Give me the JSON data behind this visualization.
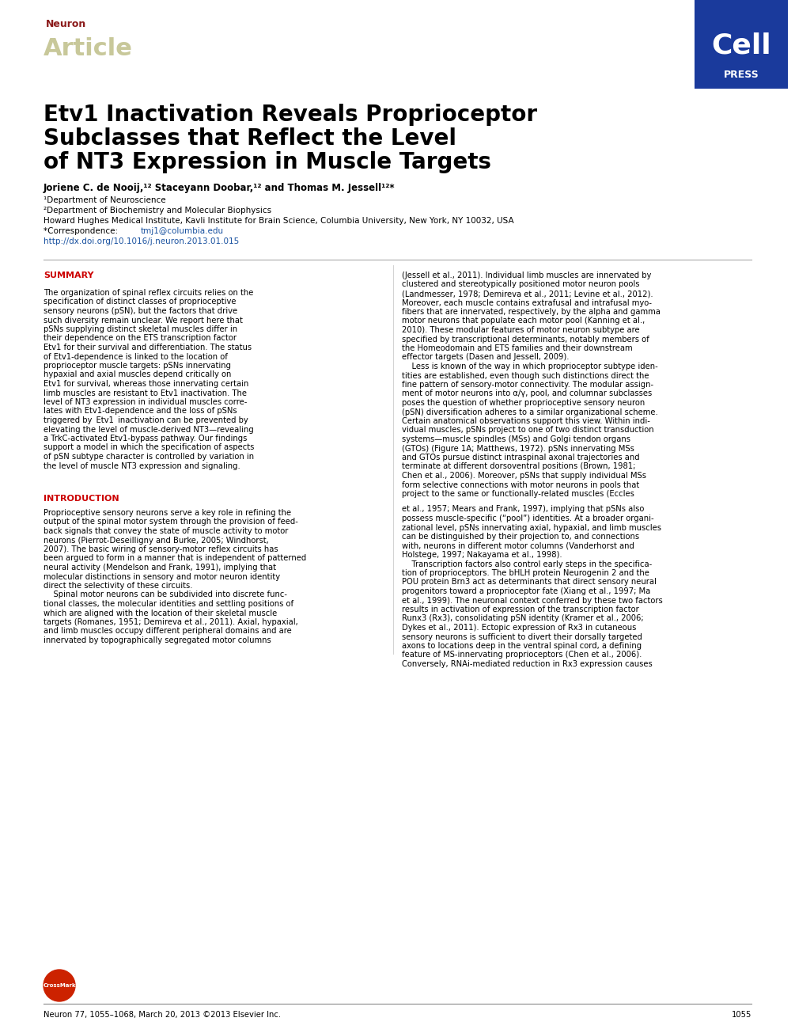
{
  "page_bg": "#ffffff",
  "header_neuron_text": "Neuron",
  "header_neuron_color": "#8B1A1A",
  "header_article_text": "Article",
  "header_article_color": "#C8C89A",
  "cellpress_bg": "#1A3A9C",
  "cellpress_cell": "Cell",
  "cellpress_press": "PRESS",
  "title_line1": "Etv1 Inactivation Reveals Proprioceptor",
  "title_line2": "Subclasses that Reflect the Level",
  "title_line3": "of NT3 Expression in Muscle Targets",
  "title_color": "#000000",
  "affil1": "¹Department of Neuroscience",
  "affil2": "²Department of Biochemistry and Molecular Biophysics",
  "affil3": "Howard Hughes Medical Institute, Kavli Institute for Brain Science, Columbia University, New York, NY 10032, USA",
  "affil4_prefix": "*Correspondence: ",
  "affil4_link": "tmj1@columbia.edu",
  "affil5_link": "http://dx.doi.org/10.1016/j.neuron.2013.01.015",
  "link_color": "#1A52A0",
  "summary_label": "SUMMARY",
  "summary_color": "#CC0000",
  "intro_label": "INTRODUCTION",
  "intro_color": "#CC0000",
  "footer_text": "Neuron 77, 1055–1068, March 20, 2013 ©2013 Elsevier Inc.",
  "footer_page": "1055",
  "text_color": "#000000",
  "body_fontsize": 7.2,
  "summary_left_lines": [
    "The organization of spinal reflex circuits relies on the",
    "specification of distinct classes of proprioceptive",
    "sensory neurons (pSN), but the factors that drive",
    "such diversity remain unclear. We report here that",
    "pSNs supplying distinct skeletal muscles differ in",
    "their dependence on the ETS transcription factor",
    "Etv1 for their survival and differentiation. The status",
    "of Etv1-dependence is linked to the location of",
    "proprioceptor muscle targets: pSNs innervating",
    "hypaxial and axial muscles depend critically on",
    "Etv1 for survival, whereas those innervating certain",
    "limb muscles are resistant to Etv1 inactivation. The",
    "level of NT3 expression in individual muscles corre-",
    "lates with Etv1-dependence and the loss of pSNs",
    "triggered by  Etv1  inactivation can be prevented by",
    "elevating the level of muscle-derived NT3—revealing",
    "a TrkC-activated Etv1-bypass pathway. Our findings",
    "support a model in which the specification of aspects",
    "of pSN subtype character is controlled by variation in",
    "the level of muscle NT3 expression and signaling."
  ],
  "right_summary_lines": [
    "(Jessell et al., 2011). Individual limb muscles are innervated by",
    "clustered and stereotypically positioned motor neuron pools",
    "(Landmesser, 1978; Demireva et al., 2011; Levine et al., 2012).",
    "Moreover, each muscle contains extrafusal and intrafusal myo-",
    "fibers that are innervated, respectively, by the alpha and gamma",
    "motor neurons that populate each motor pool (Kanning et al.,",
    "2010). These modular features of motor neuron subtype are",
    "specified by transcriptional determinants, notably members of",
    "the Homeodomain and ETS families and their downstream",
    "effector targets (Dasen and Jessell, 2009).",
    "    Less is known of the way in which proprioceptor subtype iden-",
    "tities are established, even though such distinctions direct the",
    "fine pattern of sensory-motor connectivity. The modular assign-",
    "ment of motor neurons into α/γ, pool, and columnar subclasses",
    "poses the question of whether proprioceptive sensory neuron",
    "(pSN) diversification adheres to a similar organizational scheme.",
    "Certain anatomical observations support this view. Within indi-",
    "vidual muscles, pSNs project to one of two distinct transduction",
    "systems—muscle spindles (MSs) and Golgi tendon organs",
    "(GTOs) (Figure 1A; Matthews, 1972). pSNs innervating MSs",
    "and GTOs pursue distinct intraspinal axonal trajectories and",
    "terminate at different dorsoventral positions (Brown, 1981;",
    "Chen et al., 2006). Moreover, pSNs that supply individual MSs",
    "form selective connections with motor neurons in pools that",
    "project to the same or functionally-related muscles (Eccles"
  ],
  "intro_left_lines": [
    "Proprioceptive sensory neurons serve a key role in refining the",
    "output of the spinal motor system through the provision of feed-",
    "back signals that convey the state of muscle activity to motor",
    "neurons (Pierrot-Deseilligny and Burke, 2005; Windhorst,",
    "2007). The basic wiring of sensory-motor reflex circuits has",
    "been argued to form in a manner that is independent of patterned",
    "neural activity (Mendelson and Frank, 1991), implying that",
    "molecular distinctions in sensory and motor neuron identity",
    "direct the selectivity of these circuits.",
    "    Spinal motor neurons can be subdivided into discrete func-",
    "tional classes, the molecular identities and settling positions of",
    "which are aligned with the location of their skeletal muscle",
    "targets (Romanes, 1951; Demireva et al., 2011). Axial, hypaxial,",
    "and limb muscles occupy different peripheral domains and are",
    "innervated by topographically segregated motor columns"
  ],
  "right_intro_lines": [
    "et al., 1957; Mears and Frank, 1997), implying that pSNs also",
    "possess muscle-specific (“pool”) identities. At a broader organi-",
    "zational level, pSNs innervating axial, hypaxial, and limb muscles",
    "can be distinguished by their projection to, and connections",
    "with, neurons in different motor columns (Vanderhorst and",
    "Holstege, 1997; Nakayama et al., 1998).",
    "    Transcription factors also control early steps in the specifica-",
    "tion of proprioceptors. The bHLH protein Neurogenin 2 and the",
    "POU protein Brn3 act as determinants that direct sensory neural",
    "progenitors toward a proprioceptor fate (Xiang et al., 1997; Ma",
    "et al., 1999). The neuronal context conferred by these two factors",
    "results in activation of expression of the transcription factor",
    "Runx3 (Rx3), consolidating pSN identity (Kramer et al., 2006;",
    "Dykes et al., 2011). Ectopic expression of Rx3 in cutaneous",
    "sensory neurons is sufficient to divert their dorsally targeted",
    "axons to locations deep in the ventral spinal cord, a defining",
    "feature of MS-innervating proprioceptors (Chen et al., 2006).",
    "Conversely, RNAi-mediated reduction in Rx3 expression causes"
  ]
}
